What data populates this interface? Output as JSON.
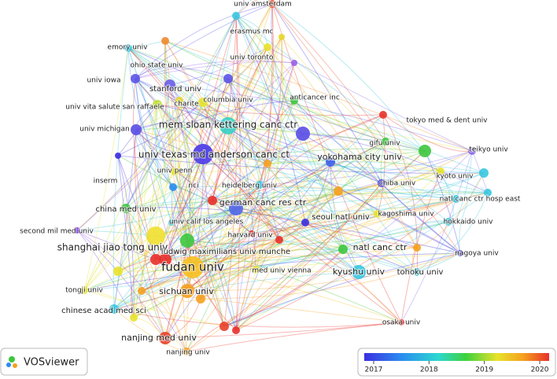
{
  "nodes": [
    {
      "label": "univ amsterdam"
    },
    {
      "label": "erasmus mc"
    },
    {
      "label": "emory univ"
    },
    {
      "label": "ohio state univ"
    },
    {
      "label": "univ toronto"
    },
    {
      "label": "univ iowa"
    },
    {
      "label": "stanford univ"
    },
    {
      "label": "anticancer inc"
    },
    {
      "label": "univ vita salute san raffaele"
    },
    {
      "label": "charite"
    },
    {
      "label": "columbia univ"
    },
    {
      "label": "mem sloan kettering canc ctr"
    },
    {
      "label": "tokyo med & dent univ"
    },
    {
      "label": "univ michigan"
    },
    {
      "label": "gifu univ"
    },
    {
      "label": "teikyo univ"
    },
    {
      "label": "univ texas md anderson canc ct"
    },
    {
      "label": "yokohama city univ"
    },
    {
      "label": "inserm"
    },
    {
      "label": "univ penn"
    },
    {
      "label": "kyoto univ"
    },
    {
      "label": "nci"
    },
    {
      "label": "heidelberg univ"
    },
    {
      "label": "chiba univ"
    },
    {
      "label": "natl canc ctr hosp east"
    },
    {
      "label": "china med univ"
    },
    {
      "label": "german canc res ctr"
    },
    {
      "label": "seoul natl univ"
    },
    {
      "label": "kagoshima univ"
    },
    {
      "label": "univ calif los angeles"
    },
    {
      "label": "hokkaido univ"
    },
    {
      "label": "second mil med univ"
    },
    {
      "label": "harvard univ"
    },
    {
      "label": "shanghai jiao tong univ"
    },
    {
      "label": "ludwig maximilians univ munche"
    },
    {
      "label": "natl canc ctr"
    },
    {
      "label": "nagoya univ"
    },
    {
      "label": "fudan univ"
    },
    {
      "label": "med univ vienna"
    },
    {
      "label": "kyushu univ"
    },
    {
      "label": "tohoku univ"
    },
    {
      "label": "tongji univ"
    },
    {
      "label": "sichuan univ"
    },
    {
      "label": "chinese acad med sci"
    },
    {
      "label": "osaka univ"
    },
    {
      "label": "nanjing med univ"
    },
    {
      "label": "nanjing univ"
    }
  ],
  "logo": "VOSviewer",
  "colorbar": {
    "range": [
      2016.83,
      2020.17
    ],
    "ticks": [
      2017,
      2018,
      2019,
      2020
    ]
  }
}
